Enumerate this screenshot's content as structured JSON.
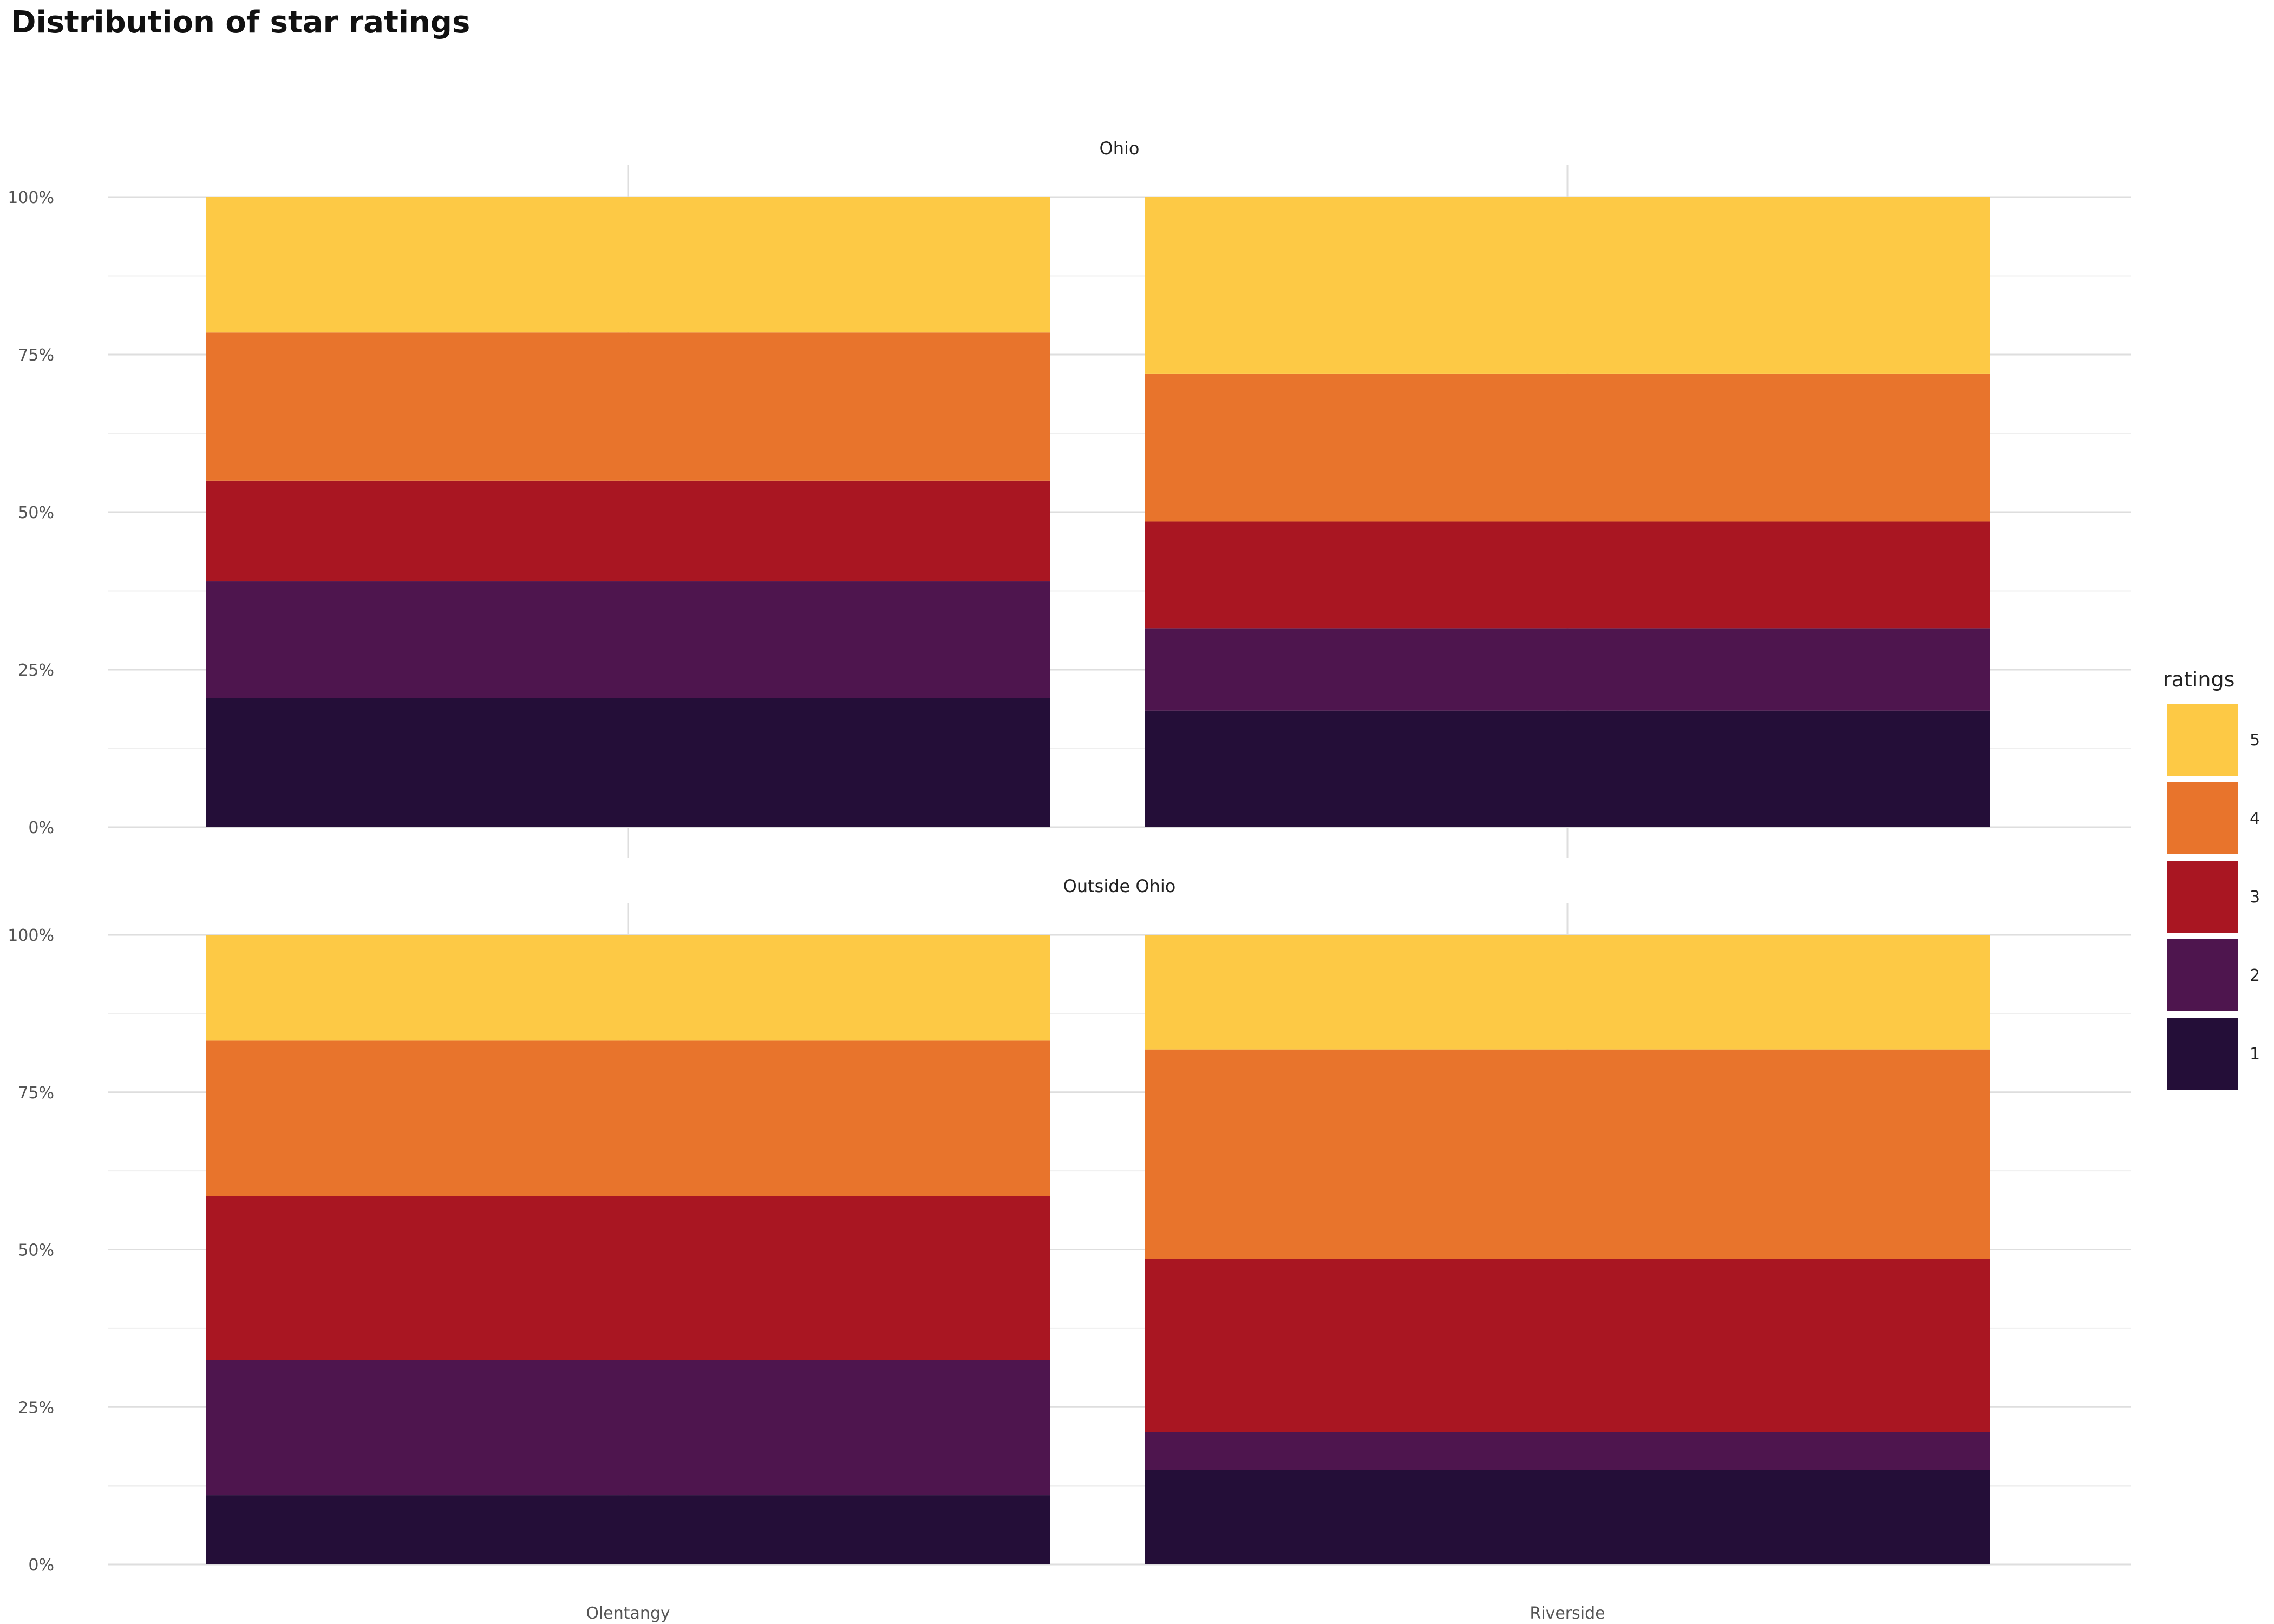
{
  "chart_data": {
    "type": "bar",
    "stacked": "percent",
    "title": "Distribution of star ratings",
    "xlabel": "",
    "ylabel": "",
    "ylim": [
      0,
      1
    ],
    "y_ticks": [
      "0%",
      "25%",
      "50%",
      "75%",
      "100%"
    ],
    "categories": [
      "Olentangy",
      "Riverside"
    ],
    "legend": {
      "title": "ratings",
      "position": "right",
      "order": [
        "5",
        "4",
        "3",
        "2",
        "1"
      ]
    },
    "grid": true,
    "colors": {
      "5": "#FDC945",
      "4": "#E8742C",
      "3": "#A91622",
      "2": "#4E154E",
      "1": "#240E38"
    },
    "facets": [
      {
        "name": "Ohio",
        "series": [
          {
            "name": "1",
            "values": [
              0.205,
              0.185
            ]
          },
          {
            "name": "2",
            "values": [
              0.185,
              0.13
            ]
          },
          {
            "name": "3",
            "values": [
              0.16,
              0.17
            ]
          },
          {
            "name": "4",
            "values": [
              0.235,
              0.235
            ]
          },
          {
            "name": "5",
            "values": [
              0.215,
              0.28
            ]
          }
        ]
      },
      {
        "name": "Outside Ohio",
        "series": [
          {
            "name": "1",
            "values": [
              0.11,
              0.15
            ]
          },
          {
            "name": "2",
            "values": [
              0.215,
              0.06
            ]
          },
          {
            "name": "3",
            "values": [
              0.26,
              0.275
            ]
          },
          {
            "name": "4",
            "values": [
              0.247,
              0.333
            ]
          },
          {
            "name": "5",
            "values": [
              0.168,
              0.182
            ]
          }
        ]
      }
    ]
  }
}
